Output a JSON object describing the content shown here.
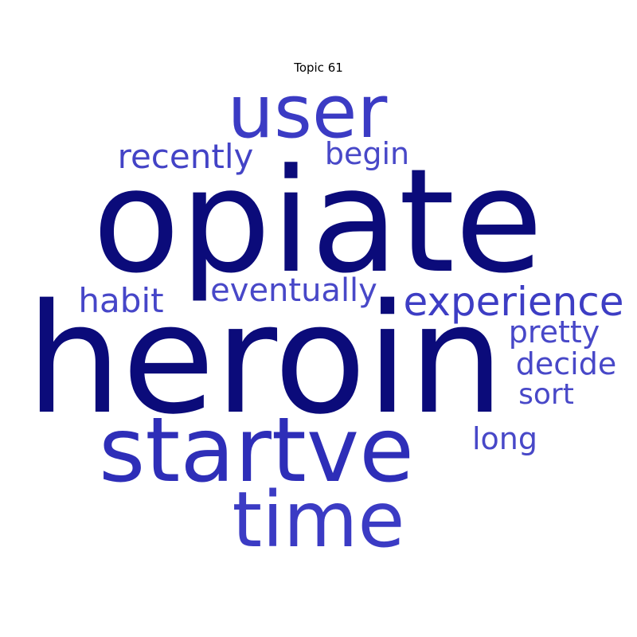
{
  "chart_data": {
    "type": "wordcloud",
    "title": "Topic 61",
    "words": [
      {
        "text": "heroin",
        "weight": 1.0,
        "color": "#0b0b7a"
      },
      {
        "text": "opiate",
        "weight": 0.95,
        "color": "#0b0b7a"
      },
      {
        "text": "startve",
        "weight": 0.7,
        "color": "#2e2eb8"
      },
      {
        "text": "time",
        "weight": 0.6,
        "color": "#3b3bc4"
      },
      {
        "text": "user",
        "weight": 0.58,
        "color": "#3b3bc4"
      },
      {
        "text": "experience",
        "weight": 0.33,
        "color": "#3d3dc4"
      },
      {
        "text": "recently",
        "weight": 0.3,
        "color": "#4343c6"
      },
      {
        "text": "habit",
        "weight": 0.3,
        "color": "#4646c8"
      },
      {
        "text": "eventually",
        "weight": 0.28,
        "color": "#4848c8"
      },
      {
        "text": "begin",
        "weight": 0.28,
        "color": "#4848c8"
      },
      {
        "text": "pretty",
        "weight": 0.28,
        "color": "#4848c8"
      },
      {
        "text": "decide",
        "weight": 0.28,
        "color": "#4848c8"
      },
      {
        "text": "long",
        "weight": 0.27,
        "color": "#4848c8"
      },
      {
        "text": "sort",
        "weight": 0.26,
        "color": "#4848c8"
      }
    ]
  }
}
